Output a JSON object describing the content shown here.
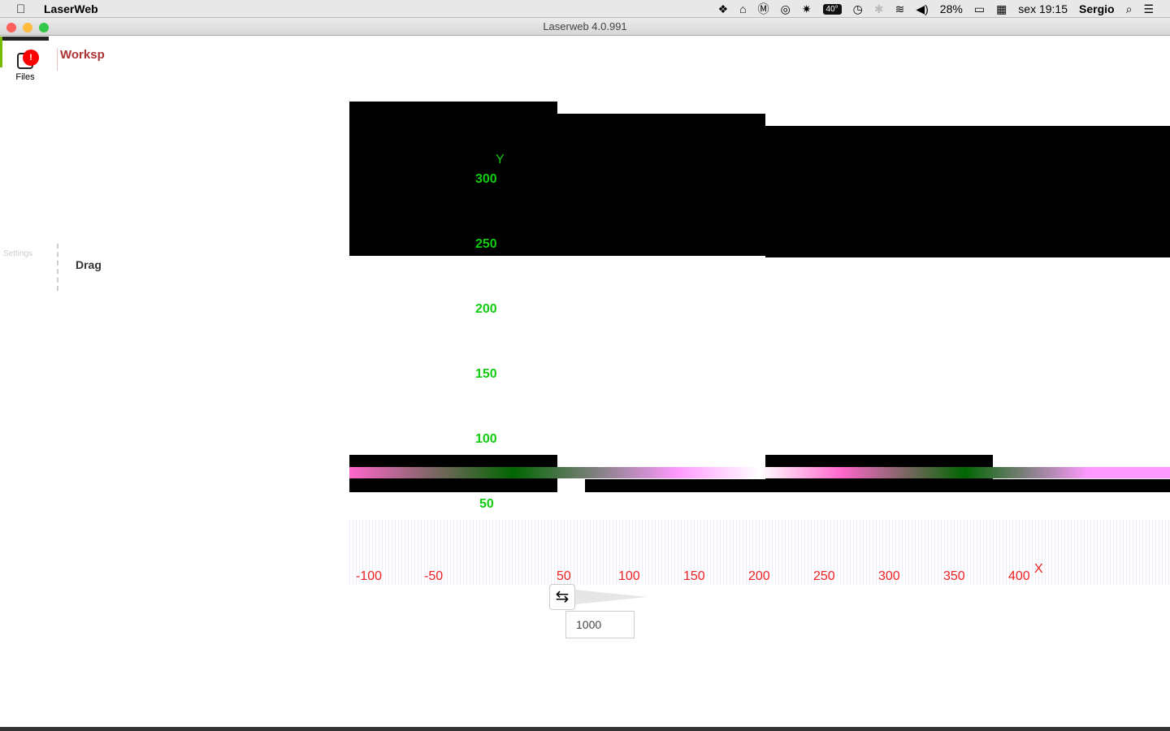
{
  "menubar": {
    "app_name": "LaserWeb",
    "temperature": "40°",
    "battery": "28%",
    "clock": "sex 19:15",
    "user": "Sergio"
  },
  "window": {
    "title": "Laserweb 4.0.991"
  },
  "sidebar": {
    "files_label": "Files",
    "settings_label": "Settings"
  },
  "panel": {
    "workspace_label": "Worksp",
    "drag_label": "Drag"
  },
  "viewport": {
    "y_axis_label": "Y",
    "x_axis_label": "X",
    "y_ticks": [
      "300",
      "250",
      "200",
      "150",
      "100",
      "50"
    ],
    "x_ticks": [
      "-100",
      "-50",
      "50",
      "100",
      "150",
      "200",
      "250",
      "300",
      "350",
      "400"
    ]
  },
  "controls": {
    "value": "1000"
  },
  "colors": {
    "x_axis": "#e22222",
    "y_axis": "#11cc11",
    "workspace": "#aa3333"
  }
}
